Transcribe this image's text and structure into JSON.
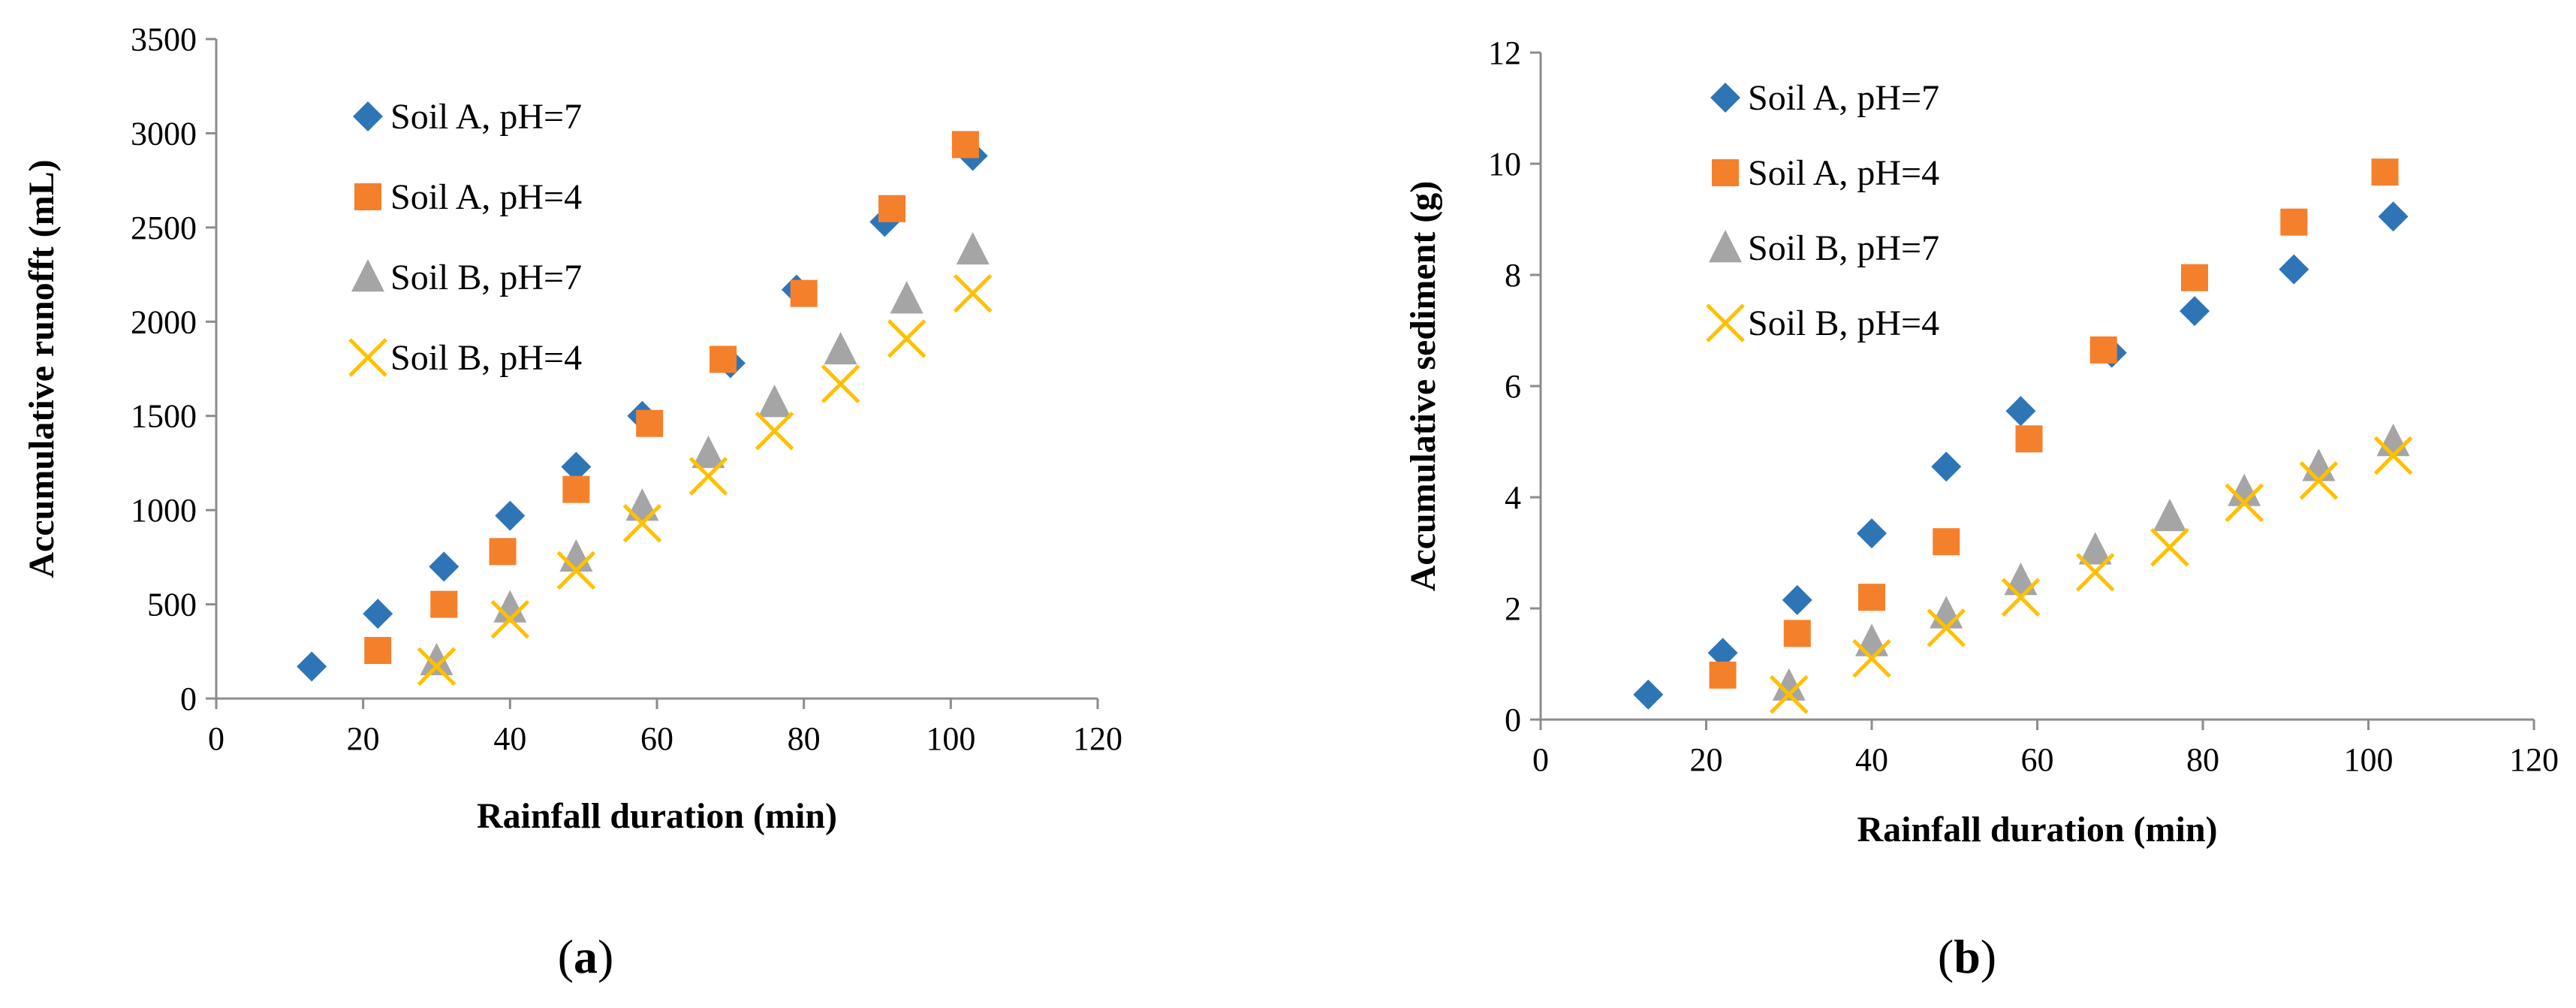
{
  "chart_data": [
    {
      "type": "scatter",
      "panel_label": "a",
      "xlabel": "Rainfall duration (min)",
      "ylabel": "Accumulative runofft  (mL)",
      "xlim": [
        0,
        120
      ],
      "ylim": [
        0,
        3500
      ],
      "xticks": [
        0,
        20,
        40,
        60,
        80,
        100,
        120
      ],
      "yticks": [
        0,
        500,
        1000,
        1500,
        2000,
        2500,
        3000,
        3500
      ],
      "legend_position": "top-left",
      "series": [
        {
          "name": "Soil A, pH=7",
          "marker": "diamond",
          "color": "#2E75B6",
          "x": [
            13,
            22,
            31,
            40,
            49,
            58,
            70,
            79,
            91,
            103
          ],
          "y": [
            170,
            450,
            700,
            970,
            1230,
            1500,
            1780,
            2170,
            2530,
            2880
          ]
        },
        {
          "name": "Soil A, pH=4",
          "marker": "square",
          "color": "#F4802C",
          "x": [
            22,
            31,
            39,
            49,
            59,
            69,
            80,
            92,
            102
          ],
          "y": [
            255,
            500,
            780,
            1110,
            1460,
            1800,
            2150,
            2600,
            2940
          ]
        },
        {
          "name": "Soil B, pH=7",
          "marker": "triangle",
          "color": "#A5A5A5",
          "x": [
            30,
            40,
            49,
            58,
            67,
            76,
            85,
            94,
            103
          ],
          "y": [
            200,
            480,
            750,
            1020,
            1300,
            1570,
            1850,
            2120,
            2380
          ]
        },
        {
          "name": "Soil B, pH=4",
          "marker": "cross",
          "color": "#FFC000",
          "x": [
            30,
            40,
            49,
            58,
            67,
            76,
            85,
            94,
            103
          ],
          "y": [
            170,
            420,
            680,
            930,
            1180,
            1420,
            1670,
            1910,
            2150
          ]
        }
      ]
    },
    {
      "type": "scatter",
      "panel_label": "b",
      "xlabel": "Rainfall duration (min)",
      "ylabel": "Accumulative sediment  (g)",
      "xlim": [
        0,
        120
      ],
      "ylim": [
        0,
        12
      ],
      "xticks": [
        0,
        20,
        40,
        60,
        80,
        100,
        120
      ],
      "yticks": [
        0,
        2,
        4,
        6,
        8,
        10,
        12
      ],
      "legend_position": "top-left",
      "series": [
        {
          "name": "Soil A, pH=7",
          "marker": "diamond",
          "color": "#2E75B6",
          "x": [
            13,
            22,
            31,
            40,
            49,
            58,
            69,
            79,
            91,
            103
          ],
          "y": [
            0.45,
            1.2,
            2.15,
            3.35,
            4.55,
            5.55,
            6.6,
            7.35,
            8.1,
            9.05
          ]
        },
        {
          "name": "Soil A, pH=4",
          "marker": "square",
          "color": "#F4802C",
          "x": [
            22,
            31,
            40,
            49,
            59,
            68,
            79,
            91,
            102
          ],
          "y": [
            0.8,
            1.55,
            2.2,
            3.2,
            5.05,
            6.65,
            7.95,
            8.95,
            9.85
          ]
        },
        {
          "name": "Soil B, pH=7",
          "marker": "triangle",
          "color": "#A5A5A5",
          "x": [
            30,
            40,
            49,
            58,
            67,
            76,
            85,
            94,
            103
          ],
          "y": [
            0.6,
            1.4,
            1.9,
            2.5,
            3.05,
            3.65,
            4.1,
            4.55,
            5.0
          ]
        },
        {
          "name": "Soil B, pH=4",
          "marker": "cross",
          "color": "#FFC000",
          "x": [
            30,
            40,
            49,
            58,
            67,
            76,
            85,
            94,
            103
          ],
          "y": [
            0.45,
            1.1,
            1.65,
            2.2,
            2.65,
            3.1,
            3.9,
            4.3,
            4.75
          ]
        }
      ]
    }
  ]
}
